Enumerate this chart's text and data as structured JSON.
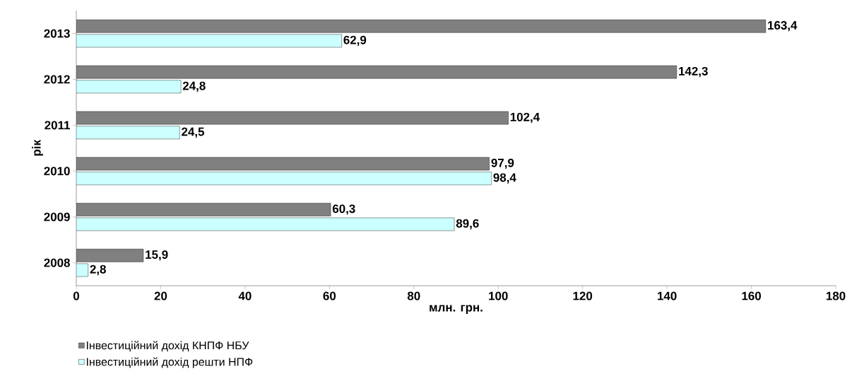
{
  "chart_data": {
    "type": "bar",
    "orientation": "horizontal",
    "xlabel": "млн. грн.",
    "ylabel": "рік",
    "categories": [
      "2013",
      "2012",
      "2011",
      "2010",
      "2009",
      "2008"
    ],
    "series": [
      {
        "name": "Інвестиційний дохід КНПФ НБУ",
        "color": "#808080",
        "values": [
          163.4,
          142.3,
          102.4,
          97.9,
          60.3,
          15.9
        ],
        "value_labels": [
          "163,4",
          "142,3",
          "102,4",
          "97,9",
          "60,3",
          "15,9"
        ]
      },
      {
        "name": "Інвестиційний дохід решти НПФ",
        "color": "#ccffff",
        "values": [
          62.9,
          24.8,
          24.5,
          98.4,
          89.6,
          2.8
        ],
        "value_labels": [
          "62,9",
          "24,8",
          "24,5",
          "98,4",
          "89,6",
          "2,8"
        ]
      }
    ],
    "xlim": [
      0,
      180
    ],
    "xticks": [
      0,
      20,
      40,
      60,
      80,
      100,
      120,
      140,
      160,
      180
    ],
    "legend": "bottom left"
  }
}
